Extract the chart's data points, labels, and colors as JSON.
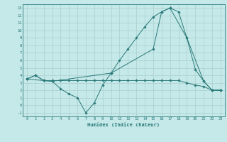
{
  "xlabel": "Humidex (Indice chaleur)",
  "bg_color": "#c5e8e8",
  "grid_color": "#aacfcf",
  "line_color": "#2a7a7a",
  "xlim": [
    -0.5,
    23.5
  ],
  "ylim": [
    -1.5,
    13.5
  ],
  "xticks": [
    0,
    1,
    2,
    3,
    4,
    5,
    6,
    7,
    8,
    9,
    10,
    11,
    12,
    13,
    14,
    15,
    16,
    17,
    18,
    19,
    20,
    21,
    22,
    23
  ],
  "yticks": [
    -1,
    0,
    1,
    2,
    3,
    4,
    5,
    6,
    7,
    8,
    9,
    10,
    11,
    12,
    13
  ],
  "series1_x": [
    0,
    1,
    2,
    3,
    4,
    5,
    6,
    7,
    8,
    9,
    10,
    11,
    12,
    13,
    14,
    15,
    16,
    17,
    18,
    19,
    20,
    21,
    22,
    23
  ],
  "series1_y": [
    3.5,
    4.0,
    3.3,
    3.2,
    2.2,
    1.5,
    1.0,
    -1.0,
    0.3,
    2.7,
    4.3,
    6.0,
    7.5,
    9.0,
    10.5,
    11.8,
    12.5,
    13.0,
    12.5,
    9.0,
    4.8,
    3.2,
    2.0,
    2.0
  ],
  "series2_x": [
    0,
    1,
    2,
    3,
    10,
    15,
    16,
    17,
    19,
    21,
    22,
    23
  ],
  "series2_y": [
    3.5,
    4.0,
    3.3,
    3.2,
    4.3,
    7.5,
    12.5,
    13.0,
    9.0,
    3.2,
    2.0,
    2.0
  ],
  "series3_x": [
    0,
    2,
    3,
    4,
    5,
    6,
    7,
    8,
    9,
    10,
    11,
    12,
    13,
    14,
    15,
    16,
    17,
    18,
    19,
    20,
    21,
    22,
    23
  ],
  "series3_y": [
    3.5,
    3.3,
    3.3,
    3.3,
    3.3,
    3.3,
    3.3,
    3.3,
    3.3,
    3.3,
    3.3,
    3.3,
    3.3,
    3.3,
    3.3,
    3.3,
    3.3,
    3.3,
    3.0,
    2.7,
    2.5,
    2.0,
    2.0
  ]
}
